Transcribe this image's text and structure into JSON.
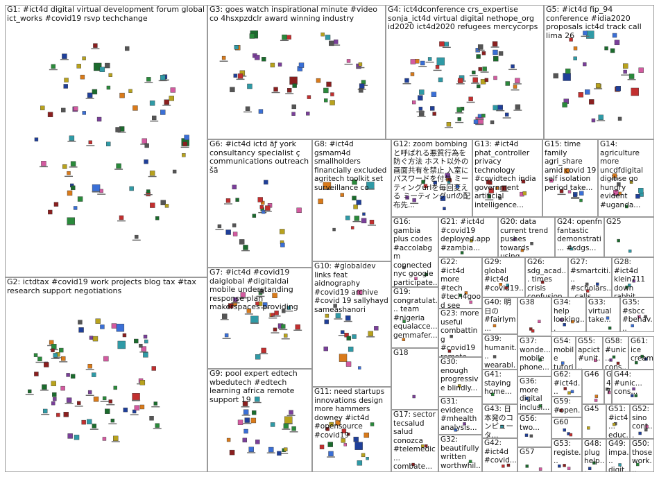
{
  "panels": [
    {
      "id": "G1",
      "text": "G1: #ict4d digital virtual development forum global ict_works #covid19 rsvp techchange"
    },
    {
      "id": "G2",
      "text": "G2: ictdtax #covid19 work projects blog tax #tax research support negotiations"
    },
    {
      "id": "G3",
      "text": "G3: goes watch inspirational minute #video co 4hsxpzdclr award winning industry"
    },
    {
      "id": "G4",
      "text": "G4: ict4dconference crs_expertise sonja_ict4d virtual digital nethope_org id2020 ict4d2020 refugees mercycorps"
    },
    {
      "id": "G5",
      "text": "G5: #ict4d fip_94 conference #idia2020 proposals ict4d track call lima 26"
    },
    {
      "id": "G6",
      "text": "G6: #ict4d ictd ãƒ york consultancy specialist ç communications outreach šã"
    },
    {
      "id": "G7",
      "text": "G7: #ict4d #covid19 daiglobal #digitaldai mobile understanding response plan makerspaces providing"
    },
    {
      "id": "G8",
      "text": "G8: #ict4d gsmam4d smallholders financially excluded agritech toolkit set surveillance co"
    },
    {
      "id": "G9",
      "text": "G9: pool expert edtech wbedutech #edtech learning africa remote support 19"
    },
    {
      "id": "G10",
      "text": "G10: #globaldev links feat aidnography #covid19 archive #covid 19 sallyhayd sameashanori"
    },
    {
      "id": "G11",
      "text": "G11: need startups innovations design more hammers downey #ict4d #opensource #covid19"
    },
    {
      "id": "G12",
      "text": "G12: zoom bombing と呼ばれる悪質行為を防ぐ方法 ホスト以外の画面共有を禁止 入室にパスワードを付与 ミーティングurlを毎回変える ミーティングurlの配布先..."
    },
    {
      "id": "G13",
      "text": "G13: #ict4d phat_controller privacy technology #covidtech india government artificial intelligence..."
    },
    {
      "id": "G14",
      "text": "G14: agriculture more uncdfdigital digitise go hungry evident #uganda..."
    },
    {
      "id": "G15",
      "text": "G15: time family agri_share amid covid 19 self isolation period take..."
    },
    {
      "id": "G16",
      "text": "G16: gambia plus codes #accolabgm connected nyc google participate..."
    },
    {
      "id": "G17",
      "text": "G17: sector tecsalud salud conozca #telemedic... combate..."
    },
    {
      "id": "G18",
      "text": "G18"
    },
    {
      "id": "G19",
      "text": "G19: congratulat... team #nigeria equalacce... gemmafer..."
    },
    {
      "id": "G20",
      "text": "G20: data current trend pushes towards using..."
    },
    {
      "id": "G21",
      "text": "G21: #ict4d #covid19 deployed.app #zambia..."
    },
    {
      "id": "G22",
      "text": "G22: #ict4d more #tech #tech4good see those fascinatin..."
    },
    {
      "id": "G23",
      "text": "G23: more useful combatting #covid19 remote..."
    },
    {
      "id": "G24",
      "text": "G24: openfn fantastic demonstrati... #sdgs..."
    },
    {
      "id": "G25",
      "text": "G25"
    },
    {
      "id": "G26",
      "text": "G26: sdg_acad... times crisis confusion..."
    },
    {
      "id": "G27",
      "text": "G27: #smartciti... #scholars... calls..."
    },
    {
      "id": "G28",
      "text": "G28: #ict4d klein711 down rabbit..."
    },
    {
      "id": "G29",
      "text": "G29: global #ict4d #covid19..."
    },
    {
      "id": "G30",
      "text": "G30: enough progressive blindly..."
    },
    {
      "id": "G31",
      "text": "G31: evidence #mhealth analysis..."
    },
    {
      "id": "G32",
      "text": "G32: beautifully written worthwhil..."
    },
    {
      "id": "G33",
      "text": "G33: virtual take..."
    },
    {
      "id": "G34",
      "text": "G34: help looking..."
    },
    {
      "id": "G35",
      "text": "G35: #sbcc #behav..."
    },
    {
      "id": "G36",
      "text": "G36: more digital inclusi..."
    },
    {
      "id": "G37",
      "text": "G37: wonde... mobile phone..."
    },
    {
      "id": "G38",
      "text": "G38"
    },
    {
      "id": "G39",
      "text": "G39: humanit... wearabl..."
    },
    {
      "id": "G40",
      "text": "G40: 明日の #fairlym..."
    },
    {
      "id": "G41",
      "text": "G41: staying home..."
    },
    {
      "id": "G42",
      "text": "G42: #ict4d #covid..."
    },
    {
      "id": "G43",
      "text": "G43: 日本発のコンピュータ..."
    },
    {
      "id": "G44",
      "text": "G44: #unic... cons..."
    },
    {
      "id": "G45",
      "text": "G45"
    },
    {
      "id": "G46",
      "text": "G46"
    },
    {
      "id": "G47",
      "text": "G47"
    },
    {
      "id": "G48",
      "text": "G48: plug help..."
    },
    {
      "id": "G49",
      "text": "G49: impa... digit..."
    },
    {
      "id": "G50",
      "text": "G50: those work..."
    },
    {
      "id": "G51",
      "text": "G51: #ict4... educ..."
    },
    {
      "id": "G52",
      "text": "G52: sino cont..."
    },
    {
      "id": "G53",
      "text": "G53: registe..."
    },
    {
      "id": "G54",
      "text": "G54: mobile tutori..."
    },
    {
      "id": "G55",
      "text": "G55: apcict #unit..."
    },
    {
      "id": "G56",
      "text": "G56: two..."
    },
    {
      "id": "G57",
      "text": "G57"
    },
    {
      "id": "G58",
      "text": "G58: #unic... cons..."
    },
    {
      "id": "G59",
      "text": "G59: #open..."
    },
    {
      "id": "G60",
      "text": "G60"
    },
    {
      "id": "G61",
      "text": "G61: ice cream"
    },
    {
      "id": "G62",
      "text": "G62: #ict4d..."
    }
  ]
}
